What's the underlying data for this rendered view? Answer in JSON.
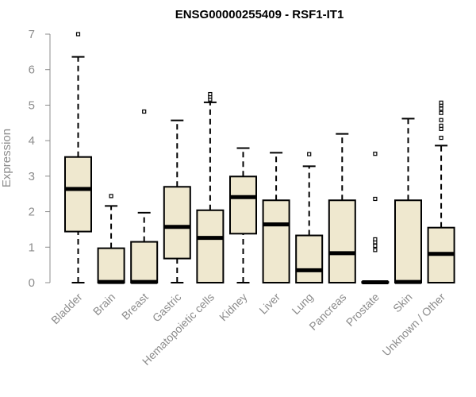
{
  "chart_data": {
    "type": "boxplot",
    "title": "ENSG00000255409 - RSF1-IT1",
    "ylabel": "Expression",
    "xlabel": "",
    "ylim": [
      0,
      7
    ],
    "yticks": [
      0,
      1,
      2,
      3,
      4,
      5,
      6,
      7
    ],
    "grid": false,
    "legend": "none",
    "box_fill": "#efe8cf",
    "box_stroke": "#000000",
    "categories": [
      "Bladder",
      "Brain",
      "Breast",
      "Gastric",
      "Hematopoietic cells",
      "Kidney",
      "Liver",
      "Lung",
      "Pancreas",
      "Prostate",
      "Skin",
      "Unknown / Other"
    ],
    "boxes": [
      {
        "whisker_low": 0,
        "q1": 1.44,
        "median": 2.64,
        "q3": 3.54,
        "whisker_high": 6.36,
        "outliers": [
          7.0
        ]
      },
      {
        "whisker_low": 0,
        "q1": 0,
        "median": 0.02,
        "q3": 0.97,
        "whisker_high": 2.16,
        "outliers": [
          2.44
        ]
      },
      {
        "whisker_low": 0,
        "q1": 0,
        "median": 0.02,
        "q3": 1.15,
        "whisker_high": 1.97,
        "outliers": [
          4.82
        ]
      },
      {
        "whisker_low": 0,
        "q1": 0.68,
        "median": 1.57,
        "q3": 2.7,
        "whisker_high": 4.57,
        "outliers": []
      },
      {
        "whisker_low": 0,
        "q1": 0,
        "median": 1.26,
        "q3": 2.04,
        "whisker_high": 5.08,
        "outliers": [
          5.16,
          5.24,
          5.31
        ]
      },
      {
        "whisker_low": 0,
        "q1": 1.38,
        "median": 2.41,
        "q3": 2.99,
        "whisker_high": 3.79,
        "outliers": []
      },
      {
        "whisker_low": 0,
        "q1": 0,
        "median": 1.64,
        "q3": 2.32,
        "whisker_high": 3.66,
        "outliers": []
      },
      {
        "whisker_low": 0,
        "q1": 0,
        "median": 0.35,
        "q3": 1.33,
        "whisker_high": 3.28,
        "outliers": [
          3.62
        ]
      },
      {
        "whisker_low": 0,
        "q1": 0,
        "median": 0.83,
        "q3": 2.32,
        "whisker_high": 4.19,
        "outliers": []
      },
      {
        "whisker_low": 0,
        "q1": 0,
        "median": 0.01,
        "q3": 0.02,
        "whisker_high": 0.02,
        "outliers": [
          0.92,
          1.04,
          1.14,
          1.22,
          2.36,
          3.63
        ]
      },
      {
        "whisker_low": 0,
        "q1": 0,
        "median": 0.02,
        "q3": 2.32,
        "whisker_high": 4.62,
        "outliers": []
      },
      {
        "whisker_low": 0,
        "q1": 0,
        "median": 0.81,
        "q3": 1.55,
        "whisker_high": 3.86,
        "outliers": [
          4.08,
          4.33,
          4.42,
          4.58,
          4.78,
          4.9,
          5.0,
          5.07
        ]
      }
    ]
  }
}
